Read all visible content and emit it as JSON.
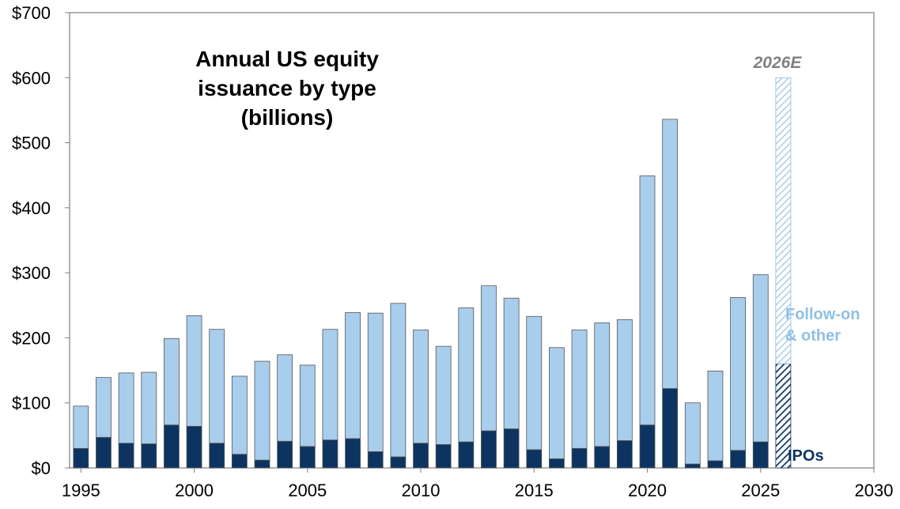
{
  "chart_data": {
    "type": "bar",
    "stacked": true,
    "title_lines": [
      "Annual US equity",
      "issuance by type",
      "(billions)"
    ],
    "x": [
      1995,
      1996,
      1997,
      1998,
      1999,
      2000,
      2001,
      2002,
      2003,
      2004,
      2005,
      2006,
      2007,
      2008,
      2009,
      2010,
      2011,
      2012,
      2013,
      2014,
      2015,
      2016,
      2017,
      2018,
      2019,
      2020,
      2021,
      2022,
      2023,
      2024,
      2025,
      2026
    ],
    "series": [
      {
        "name": "IPOs",
        "color": "#0d3461",
        "values": [
          30,
          47,
          38,
          37,
          66,
          64,
          38,
          21,
          12,
          41,
          33,
          43,
          45,
          25,
          17,
          38,
          36,
          40,
          57,
          60,
          28,
          14,
          30,
          33,
          42,
          66,
          122,
          6,
          11,
          27,
          40,
          160
        ]
      },
      {
        "name": "Follow-on & other",
        "color": "#a9cdec",
        "values": [
          65,
          92,
          108,
          110,
          133,
          170,
          175,
          120,
          152,
          133,
          125,
          170,
          194,
          213,
          236,
          174,
          151,
          206,
          223,
          201,
          205,
          171,
          182,
          190,
          186,
          383,
          414,
          94,
          138,
          235,
          257,
          440
        ]
      }
    ],
    "estimate": {
      "year": 2026,
      "label": "2026E"
    },
    "xlim": [
      1995,
      2030
    ],
    "ylim": [
      0,
      700
    ],
    "x_ticks": [
      1995,
      2000,
      2005,
      2010,
      2015,
      2020,
      2025,
      2030
    ],
    "y_ticks": [
      0,
      100,
      200,
      300,
      400,
      500,
      600,
      700
    ],
    "y_tick_labels": [
      "$0",
      "$100",
      "$200",
      "$300",
      "$400",
      "$500",
      "$600",
      "$700"
    ],
    "legend": {
      "follow_on_lines": [
        "Follow-on",
        "& other"
      ],
      "ipos": "IPOs",
      "follow_on_color": "#8fc0e6",
      "ipos_color": "#0d3461"
    },
    "estimate_label_color": "#808080",
    "grid": false,
    "xlabel": "",
    "ylabel": ""
  }
}
